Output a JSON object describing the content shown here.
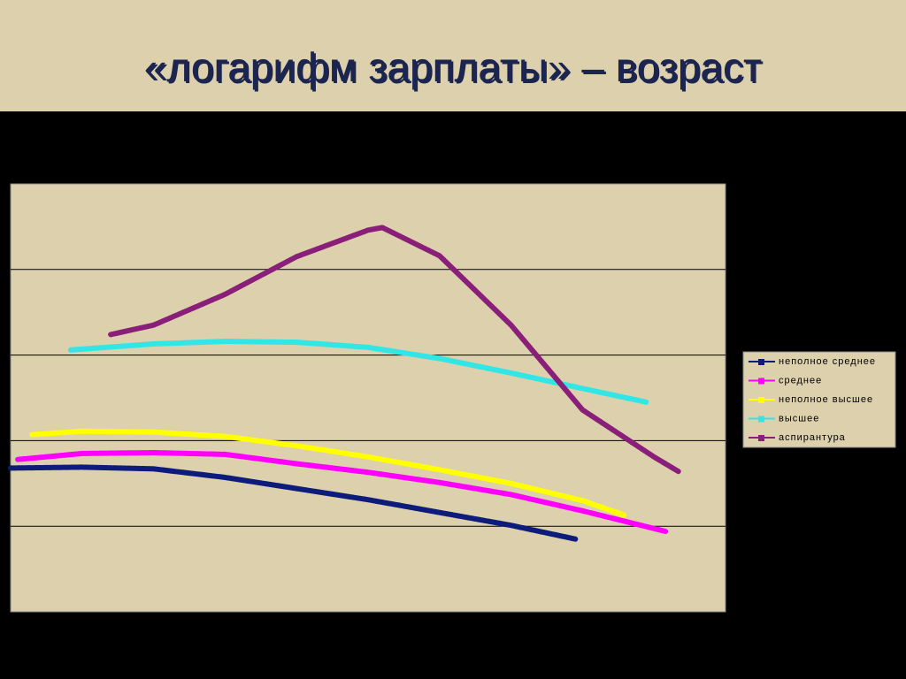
{
  "chart_data": {
    "type": "line",
    "title": "«логарифм зарплаты» – возраст",
    "xlim": [
      0,
      100
    ],
    "ylim": [
      0,
      5
    ],
    "yticks": [
      1,
      2,
      3,
      4
    ],
    "grid": true,
    "tick_labels": false,
    "legend": "right",
    "background": "#ddd0ad",
    "series": [
      {
        "name": "неполное среднее",
        "color": "#0d1c7a",
        "x": [
          0,
          10,
          20,
          30,
          40,
          50,
          60,
          70,
          79
        ],
        "values": [
          1.68,
          1.69,
          1.67,
          1.57,
          1.44,
          1.31,
          1.16,
          1.01,
          0.85
        ]
      },
      {
        "name": "среднее",
        "color": "#ff00ff",
        "x": [
          1,
          10,
          20,
          30,
          40,
          50,
          60,
          70,
          80,
          91.6
        ],
        "values": [
          1.78,
          1.85,
          1.86,
          1.84,
          1.73,
          1.63,
          1.51,
          1.37,
          1.18,
          0.94
        ]
      },
      {
        "name": "неполное высшее",
        "color": "#ffff00",
        "x": [
          3,
          10,
          20,
          30,
          40,
          50,
          60,
          70,
          80,
          85.8
        ],
        "values": [
          2.07,
          2.11,
          2.1,
          2.05,
          1.94,
          1.81,
          1.66,
          1.5,
          1.3,
          1.13
        ]
      },
      {
        "name": "высшее",
        "color": "#33e6e6",
        "x": [
          8.4,
          20,
          30,
          40,
          50,
          60,
          70,
          80,
          88.9
        ],
        "values": [
          3.06,
          3.13,
          3.16,
          3.15,
          3.09,
          2.96,
          2.79,
          2.61,
          2.45
        ]
      },
      {
        "name": "аспирантура",
        "color": "#8a1f7a",
        "x": [
          14,
          20,
          30,
          40,
          50,
          52,
          60,
          70,
          80,
          90,
          93.4
        ],
        "values": [
          3.24,
          3.35,
          3.71,
          4.15,
          4.46,
          4.49,
          4.16,
          3.35,
          2.36,
          1.81,
          1.64
        ]
      }
    ]
  }
}
